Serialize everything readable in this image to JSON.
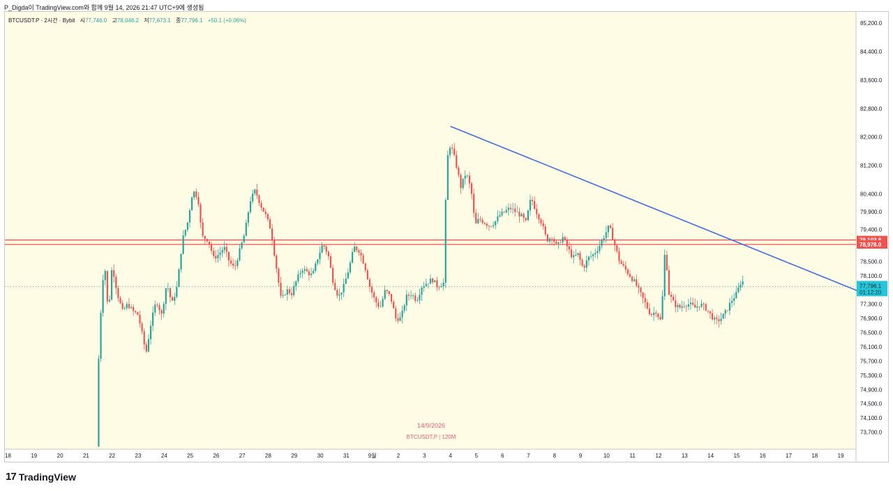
{
  "header": {
    "attribution": "P_Digda이 TradingView.com와 함께 9월 14, 2026 21:47 UTC+9에 생성됨"
  },
  "legend": {
    "symbol_line": "BTCUSDT.P · 2시간 · Bybit",
    "open_label": "시",
    "open_value": "77,746.0",
    "high_label": "고",
    "high_value": "78,046.2",
    "low_label": "저",
    "low_value": "77,673.1",
    "close_label": "종",
    "close_value": "77,796.1",
    "change": "+50.1 (+0.06%)"
  },
  "watermark": {
    "date": "14/9/2026",
    "symbol": "BTCUSDT.P | 120M"
  },
  "branding": {
    "logo_mark": "17",
    "logo_text": "TradingView"
  },
  "chart_data": {
    "type": "candlestick",
    "colors": {
      "up": "#26a69a",
      "down": "#ef5350",
      "background": "#fffce6",
      "trendline": "#3a6fe6",
      "level": "#ef5350"
    },
    "y_range": [
      73300,
      85400
    ],
    "y_ticks": [
      "85,200.0",
      "84,400.0",
      "83,600.0",
      "82,800.0",
      "82,000.0",
      "81,200.0",
      "80,400.0",
      "79,900.0",
      "79,400.0",
      "78,500.0",
      "78,100.0",
      "77,300.0",
      "76,900.0",
      "76,500.0",
      "76,100.0",
      "75,700.0",
      "75,300.0",
      "74,900.0",
      "74,500.0",
      "74,100.0",
      "73,700.0"
    ],
    "x_labels": [
      "18",
      "19",
      "20",
      "21",
      "22",
      "23",
      "24",
      "25",
      "26",
      "27",
      "28",
      "29",
      "30",
      "31",
      "9월",
      "2",
      "3",
      "4",
      "5",
      "6",
      "7",
      "8",
      "9",
      "10",
      "11",
      "12",
      "13",
      "14",
      "15",
      "16",
      "17",
      "18",
      "19"
    ],
    "horizontal_levels": [
      79103.8,
      78978.0
    ],
    "level_labels": [
      "79,103.8",
      "78,978.0"
    ],
    "current_price": 77796.1,
    "current_price_label": "77,796.1",
    "countdown": "01:12:20",
    "trendline": {
      "from": {
        "day_index": 17.0,
        "price": 82300
      },
      "to": {
        "day_index": 32.9,
        "price": 77600
      }
    },
    "start_day_index": 3.4,
    "bars_per_day": 12,
    "close_path": [
      [
        3.4,
        73300
      ],
      [
        3.45,
        75200
      ],
      [
        3.55,
        76900
      ],
      [
        3.7,
        78600
      ],
      [
        3.85,
        77000
      ],
      [
        4.0,
        78400
      ],
      [
        4.2,
        77600
      ],
      [
        4.4,
        77100
      ],
      [
        4.6,
        77300
      ],
      [
        4.8,
        77100
      ],
      [
        5.0,
        77000
      ],
      [
        5.2,
        76300
      ],
      [
        5.3,
        75900
      ],
      [
        5.5,
        76800
      ],
      [
        5.7,
        77400
      ],
      [
        5.9,
        77000
      ],
      [
        6.1,
        77900
      ],
      [
        6.3,
        77300
      ],
      [
        6.5,
        77800
      ],
      [
        6.7,
        79100
      ],
      [
        6.9,
        79600
      ],
      [
        7.1,
        80500
      ],
      [
        7.3,
        80300
      ],
      [
        7.45,
        79200
      ],
      [
        7.7,
        79100
      ],
      [
        7.9,
        78600
      ],
      [
        8.1,
        78700
      ],
      [
        8.3,
        78900
      ],
      [
        8.5,
        78500
      ],
      [
        8.7,
        78300
      ],
      [
        8.9,
        78800
      ],
      [
        9.1,
        79300
      ],
      [
        9.3,
        80200
      ],
      [
        9.5,
        80500
      ],
      [
        9.7,
        80100
      ],
      [
        9.9,
        79800
      ],
      [
        10.1,
        79400
      ],
      [
        10.3,
        78400
      ],
      [
        10.5,
        77400
      ],
      [
        10.7,
        77700
      ],
      [
        10.9,
        77600
      ],
      [
        11.1,
        78000
      ],
      [
        11.3,
        78300
      ],
      [
        11.5,
        78200
      ],
      [
        11.7,
        78100
      ],
      [
        11.9,
        78600
      ],
      [
        12.1,
        79000
      ],
      [
        12.3,
        78700
      ],
      [
        12.5,
        77900
      ],
      [
        12.7,
        77500
      ],
      [
        12.9,
        77800
      ],
      [
        13.1,
        78300
      ],
      [
        13.3,
        78900
      ],
      [
        13.5,
        78800
      ],
      [
        13.7,
        78400
      ],
      [
        13.9,
        77800
      ],
      [
        14.1,
        77400
      ],
      [
        14.3,
        77200
      ],
      [
        14.5,
        77700
      ],
      [
        14.7,
        77500
      ],
      [
        14.9,
        76900
      ],
      [
        15.1,
        76900
      ],
      [
        15.3,
        77500
      ],
      [
        15.5,
        77600
      ],
      [
        15.7,
        77400
      ],
      [
        15.9,
        77800
      ],
      [
        16.1,
        77900
      ],
      [
        16.3,
        78000
      ],
      [
        16.5,
        77800
      ],
      [
        16.75,
        77900
      ],
      [
        16.85,
        81300
      ],
      [
        17.0,
        81800
      ],
      [
        17.2,
        81300
      ],
      [
        17.4,
        80600
      ],
      [
        17.6,
        81000
      ],
      [
        17.8,
        80500
      ],
      [
        17.95,
        79500
      ],
      [
        18.1,
        79700
      ],
      [
        18.3,
        79600
      ],
      [
        18.5,
        79500
      ],
      [
        18.7,
        79600
      ],
      [
        18.9,
        79800
      ],
      [
        19.1,
        79900
      ],
      [
        19.3,
        80000
      ],
      [
        19.5,
        79900
      ],
      [
        19.7,
        79800
      ],
      [
        19.9,
        79600
      ],
      [
        20.1,
        80300
      ],
      [
        20.3,
        79900
      ],
      [
        20.5,
        79600
      ],
      [
        20.7,
        79100
      ],
      [
        20.9,
        79200
      ],
      [
        21.1,
        78900
      ],
      [
        21.3,
        79200
      ],
      [
        21.5,
        78900
      ],
      [
        21.7,
        78600
      ],
      [
        21.9,
        78700
      ],
      [
        22.1,
        78300
      ],
      [
        22.3,
        78600
      ],
      [
        22.5,
        78700
      ],
      [
        22.7,
        78900
      ],
      [
        22.9,
        79200
      ],
      [
        23.1,
        79500
      ],
      [
        23.3,
        79000
      ],
      [
        23.5,
        78500
      ],
      [
        23.7,
        78300
      ],
      [
        23.9,
        78100
      ],
      [
        24.1,
        77900
      ],
      [
        24.3,
        77600
      ],
      [
        24.5,
        77300
      ],
      [
        24.7,
        77000
      ],
      [
        24.9,
        77100
      ],
      [
        25.1,
        76800
      ],
      [
        25.25,
        78900
      ],
      [
        25.4,
        77600
      ],
      [
        25.6,
        77300
      ],
      [
        25.8,
        77200
      ],
      [
        26.0,
        77300
      ],
      [
        26.2,
        77300
      ],
      [
        26.4,
        77200
      ],
      [
        26.6,
        77300
      ],
      [
        26.8,
        77200
      ],
      [
        27.0,
        77000
      ],
      [
        27.2,
        76800
      ],
      [
        27.4,
        76900
      ],
      [
        27.6,
        77100
      ],
      [
        27.8,
        77400
      ],
      [
        28.0,
        77600
      ],
      [
        28.2,
        78000
      ],
      [
        28.3,
        77800
      ]
    ]
  }
}
